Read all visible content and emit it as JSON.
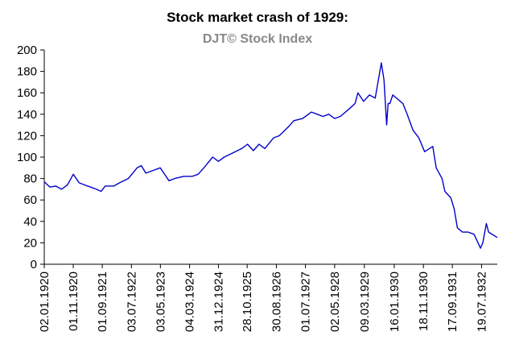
{
  "chart_data": {
    "type": "line",
    "title": "Stock market crash of 1929:",
    "subtitle": "DJT©  Stock Index",
    "xlabel": "",
    "ylabel": "",
    "ylim": [
      0,
      200
    ],
    "yticks": [
      0,
      20,
      40,
      60,
      80,
      100,
      120,
      140,
      160,
      180,
      200
    ],
    "xlim": [
      "1920-01-02",
      "1932-12-31"
    ],
    "xtick_labels": [
      "02.01.1920",
      "01.11.1920",
      "01.09.1921",
      "03.07.1922",
      "03.05.1923",
      "04.03.1924",
      "31.12.1924",
      "28.10.1925",
      "30.08.1926",
      "01.07.1927",
      "02.05.1928",
      "09.03.1929",
      "16.01.1930",
      "18.11.1930",
      "17.09.1931",
      "19.07.1932"
    ],
    "grid": false,
    "series": [
      {
        "color": "#0000cc",
        "x": [
          "1920-01-02",
          "1920-03-01",
          "1920-05-01",
          "1920-07-01",
          "1920-09-01",
          "1920-11-01",
          "1921-01-01",
          "1921-03-01",
          "1921-05-01",
          "1921-07-01",
          "1921-08-20",
          "1921-10-01",
          "1922-01-01",
          "1922-03-01",
          "1922-06-01",
          "1922-09-01",
          "1922-10-15",
          "1922-12-01",
          "1923-03-01",
          "1923-05-01",
          "1923-07-01",
          "1923-08-01",
          "1923-10-01",
          "1924-01-01",
          "1924-04-01",
          "1924-06-01",
          "1924-08-01",
          "1924-11-01",
          "1924-12-31",
          "1925-03-01",
          "1925-06-01",
          "1925-09-01",
          "1925-11-01",
          "1926-01-01",
          "1926-03-01",
          "1926-05-01",
          "1926-08-01",
          "1926-10-01",
          "1927-01-01",
          "1927-03-01",
          "1927-06-01",
          "1927-09-01",
          "1927-11-01",
          "1928-01-01",
          "1928-03-01",
          "1928-05-01",
          "1928-07-01",
          "1928-10-01",
          "1928-12-01",
          "1929-01-01",
          "1929-03-01",
          "1929-05-01",
          "1929-07-01",
          "1929-09-03",
          "1929-10-01",
          "1929-10-29",
          "1929-11-13",
          "1929-12-01",
          "1930-01-01",
          "1930-04-17",
          "1930-06-01",
          "1930-08-01",
          "1930-10-01",
          "1930-12-01",
          "1931-02-24",
          "1931-04-01",
          "1931-06-01",
          "1931-07-01",
          "1931-09-01",
          "1931-10-05",
          "1931-11-09",
          "1932-01-01",
          "1932-03-01",
          "1932-05-01",
          "1932-07-08",
          "1932-08-01",
          "1932-09-07",
          "1932-10-01",
          "1932-12-31"
        ],
        "values": [
          77,
          72,
          73,
          70,
          74,
          84,
          76,
          74,
          72,
          70,
          68,
          73,
          73,
          76,
          80,
          90,
          92,
          85,
          88,
          90,
          82,
          78,
          80,
          82,
          82,
          84,
          90,
          100,
          96,
          100,
          104,
          108,
          112,
          106,
          112,
          108,
          118,
          120,
          128,
          134,
          136,
          142,
          140,
          138,
          140,
          136,
          138,
          145,
          150,
          160,
          152,
          158,
          155,
          188,
          172,
          130,
          150,
          150,
          158,
          150,
          140,
          125,
          118,
          105,
          110,
          90,
          80,
          68,
          62,
          52,
          34,
          30,
          30,
          28,
          15,
          20,
          38,
          30,
          25
        ]
      }
    ]
  }
}
